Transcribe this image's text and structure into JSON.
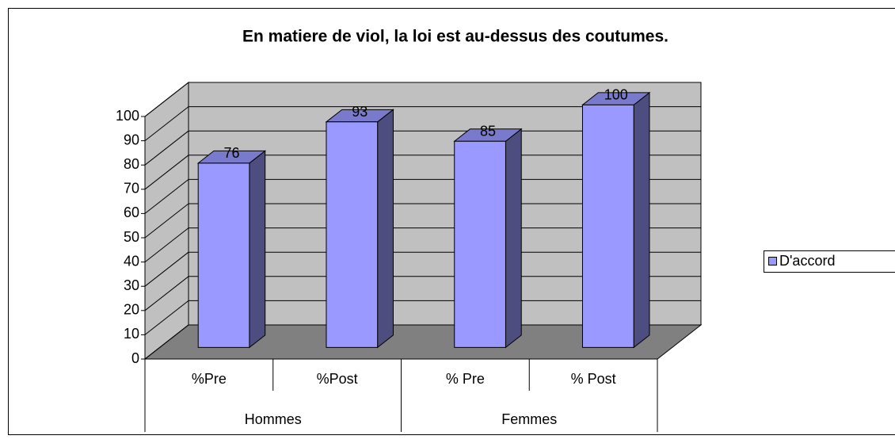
{
  "chart_data": {
    "type": "bar3d",
    "title": "En matiere de viol, la loi est au-dessus des coutumes.",
    "categories": [
      "%Pre",
      "%Post",
      "% Pre",
      "% Post"
    ],
    "groups": [
      "Hommes",
      "Femmes"
    ],
    "series": [
      {
        "name": "D'accord",
        "color": "#9999ff",
        "values": [
          76,
          93,
          85,
          100
        ]
      }
    ],
    "ylim": [
      0,
      100
    ],
    "yticks": [
      0,
      10,
      20,
      30,
      40,
      50,
      60,
      70,
      80,
      90,
      100
    ],
    "grid": true,
    "legend": "right"
  }
}
